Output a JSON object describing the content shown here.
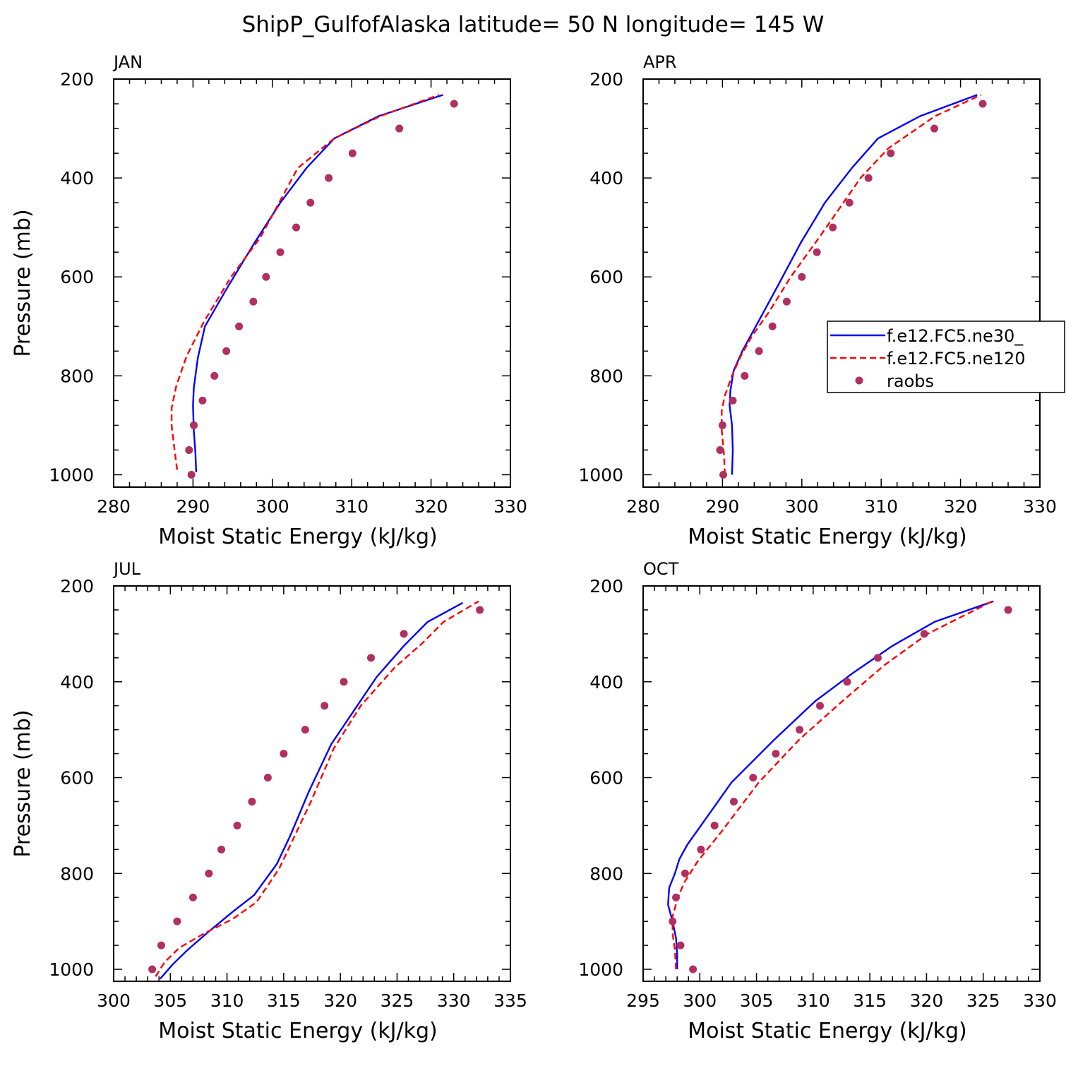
{
  "title": "ShipP_GulfofAlaska  latitude= 50 N longitude= 145 W",
  "legend": {
    "placement": "right-middle of APR panel",
    "entries": [
      {
        "label": "f.e12.FC5.ne30_",
        "color": "#0000ff",
        "style": "solid"
      },
      {
        "label": "f.e12.FC5.ne120",
        "color": "#ff0000",
        "style": "dashed"
      },
      {
        "label": "raobs",
        "color": "#b03060",
        "style": "dots"
      }
    ]
  },
  "chart_data": [
    {
      "type": "line",
      "title": "JAN",
      "xlabel": "Moist Static Energy (kJ/kg)",
      "ylabel": "Pressure (mb)",
      "xlim": [
        280,
        330
      ],
      "ylim": [
        200,
        1025
      ],
      "y_inverted": true,
      "xticks": [
        280,
        290,
        300,
        310,
        320,
        330
      ],
      "yticks": [
        200,
        400,
        600,
        800,
        1000
      ],
      "series": [
        {
          "name": "f.e12.FC5.ne30_",
          "color": "#0000ff",
          "style": "solid",
          "x": [
            290.4,
            290.3,
            290.1,
            290.0,
            290.1,
            290.6,
            291.5,
            294.2,
            297.6,
            301.0,
            304.3,
            307.8,
            313.4,
            321.5
          ],
          "y": [
            995,
            955,
            910,
            860,
            825,
            765,
            700,
            625,
            535,
            450,
            380,
            320,
            275,
            232
          ]
        },
        {
          "name": "f.e12.FC5.ne120",
          "color": "#ff0000",
          "style": "dashed",
          "x": [
            288.0,
            287.6,
            287.3,
            287.3,
            287.9,
            289.2,
            291.4,
            294.8,
            298.5,
            303.2,
            307.8,
            313.6,
            321.0
          ],
          "y": [
            990,
            940,
            900,
            865,
            820,
            760,
            690,
            600,
            520,
            380,
            320,
            275,
            232
          ]
        },
        {
          "name": "raobs",
          "color": "#b03060",
          "style": "dots",
          "x": [
            289.8,
            289.5,
            290.1,
            291.2,
            292.7,
            294.2,
            295.8,
            297.6,
            299.2,
            301.0,
            303.0,
            304.8,
            307.1,
            310.1,
            316.0,
            322.9
          ],
          "y": [
            1000,
            950,
            900,
            850,
            800,
            750,
            700,
            650,
            600,
            550,
            500,
            450,
            400,
            350,
            300,
            250
          ]
        }
      ]
    },
    {
      "type": "line",
      "title": "APR",
      "xlabel": "Moist Static Energy (kJ/kg)",
      "ylabel": "",
      "xlim": [
        280,
        330
      ],
      "ylim": [
        200,
        1025
      ],
      "y_inverted": true,
      "xticks": [
        280,
        290,
        300,
        310,
        320,
        330
      ],
      "yticks": [
        200,
        400,
        600,
        800,
        1000
      ],
      "series": [
        {
          "name": "f.e12.FC5.ne30_",
          "color": "#0000ff",
          "style": "solid",
          "x": [
            291.2,
            291.3,
            291.2,
            290.9,
            291.0,
            291.4,
            292.5,
            294.2,
            296.9,
            299.9,
            302.9,
            306.3,
            309.6,
            314.9,
            322.1
          ],
          "y": [
            1000,
            950,
            900,
            860,
            830,
            790,
            750,
            700,
            620,
            530,
            450,
            380,
            320,
            275,
            232
          ]
        },
        {
          "name": "f.e12.FC5.ne120",
          "color": "#ff0000",
          "style": "dashed",
          "x": [
            290.3,
            290.2,
            289.9,
            289.9,
            290.3,
            291.2,
            292.3,
            293.7,
            295.9,
            298.6,
            302.2,
            304.8,
            307.4,
            310.9,
            316.8,
            322.6
          ],
          "y": [
            1000,
            960,
            910,
            870,
            840,
            800,
            760,
            720,
            670,
            600,
            520,
            460,
            400,
            340,
            275,
            232
          ]
        },
        {
          "name": "raobs",
          "color": "#b03060",
          "style": "dots",
          "x": [
            290.1,
            289.7,
            290.0,
            291.3,
            292.8,
            294.6,
            296.3,
            298.1,
            300.0,
            301.9,
            303.9,
            306.0,
            308.4,
            311.2,
            316.7,
            322.8
          ],
          "y": [
            1000,
            950,
            900,
            850,
            800,
            750,
            700,
            650,
            600,
            550,
            500,
            450,
            400,
            350,
            300,
            250
          ]
        }
      ]
    },
    {
      "type": "line",
      "title": "JUL",
      "xlabel": "Moist Static Energy (kJ/kg)",
      "ylabel": "Pressure (mb)",
      "xlim": [
        300,
        335
      ],
      "ylim": [
        200,
        1025
      ],
      "y_inverted": true,
      "xticks": [
        300,
        305,
        310,
        315,
        320,
        325,
        330,
        335
      ],
      "yticks": [
        200,
        400,
        600,
        800,
        1000
      ],
      "series": [
        {
          "name": "f.e12.FC5.ne30_",
          "color": "#0000ff",
          "style": "solid",
          "x": [
            304.1,
            305.2,
            306.5,
            308.2,
            310.5,
            312.4,
            314.4,
            315.6,
            317.2,
            319.2,
            323.2,
            325.6,
            327.7,
            330.8
          ],
          "y": [
            1020,
            990,
            960,
            925,
            880,
            845,
            780,
            720,
            630,
            530,
            390,
            325,
            275,
            235
          ]
        },
        {
          "name": "f.e12.FC5.ne120",
          "color": "#ff0000",
          "style": "dashed",
          "x": [
            303.7,
            304.5,
            305.8,
            308.0,
            310.5,
            312.6,
            314.6,
            316.0,
            317.4,
            319.4,
            321.8,
            324.8,
            327.2,
            329.1,
            332.2
          ],
          "y": [
            1015,
            985,
            955,
            925,
            895,
            860,
            790,
            720,
            650,
            540,
            450,
            370,
            320,
            275,
            232
          ]
        },
        {
          "name": "raobs",
          "color": "#b03060",
          "style": "dots",
          "x": [
            303.4,
            304.2,
            305.6,
            307.0,
            308.4,
            309.5,
            310.9,
            312.2,
            313.6,
            315.0,
            316.9,
            318.6,
            320.3,
            322.7,
            325.6,
            332.3
          ],
          "y": [
            1000,
            950,
            900,
            850,
            800,
            750,
            700,
            650,
            600,
            550,
            500,
            450,
            400,
            350,
            300,
            250
          ]
        }
      ]
    },
    {
      "type": "line",
      "title": "OCT",
      "xlabel": "Moist Static Energy (kJ/kg)",
      "ylabel": "",
      "xlim": [
        295,
        330
      ],
      "ylim": [
        200,
        1025
      ],
      "y_inverted": true,
      "xticks": [
        295,
        300,
        305,
        310,
        315,
        320,
        325,
        330
      ],
      "yticks": [
        200,
        400,
        600,
        800,
        1000
      ],
      "series": [
        {
          "name": "f.e12.FC5.ne30_",
          "color": "#0000ff",
          "style": "solid",
          "x": [
            298.0,
            298.0,
            297.9,
            297.6,
            297.2,
            297.3,
            297.8,
            298.2,
            298.9,
            300.1,
            302.8,
            306.6,
            310.2,
            313.6,
            317.0,
            320.7,
            325.9
          ],
          "y": [
            1000,
            970,
            935,
            900,
            865,
            830,
            800,
            770,
            740,
            700,
            610,
            520,
            440,
            380,
            325,
            275,
            232
          ]
        },
        {
          "name": "f.e12.FC5.ne120",
          "color": "#ff0000",
          "style": "dashed",
          "x": [
            297.9,
            297.8,
            297.6,
            297.6,
            298.0,
            298.6,
            299.8,
            302.0,
            305.2,
            308.8,
            312.6,
            316.3,
            320.1,
            325.8
          ],
          "y": [
            1000,
            960,
            925,
            890,
            855,
            820,
            775,
            710,
            610,
            520,
            440,
            365,
            300,
            232
          ]
        },
        {
          "name": "raobs",
          "color": "#b03060",
          "style": "dots",
          "x": [
            299.4,
            298.3,
            297.6,
            297.9,
            298.7,
            300.1,
            301.3,
            303.0,
            304.7,
            306.7,
            308.8,
            310.6,
            313.0,
            315.7,
            319.8,
            327.2
          ],
          "y": [
            1000,
            950,
            900,
            850,
            800,
            750,
            700,
            650,
            600,
            550,
            500,
            450,
            400,
            350,
            300,
            250
          ]
        }
      ]
    }
  ]
}
